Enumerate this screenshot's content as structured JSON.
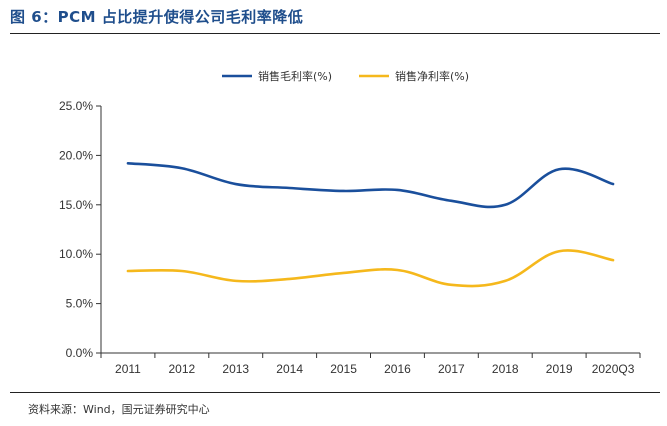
{
  "figure": {
    "title": "图 6：PCM 占比提升使得公司毛利率降低",
    "source": "资料来源：Wind，国元证券研究中心"
  },
  "chart_data": {
    "type": "line",
    "title": "",
    "xlabel": "",
    "ylabel": "",
    "categories": [
      "2011",
      "2012",
      "2013",
      "2014",
      "2015",
      "2016",
      "2017",
      "2018",
      "2019",
      "2020Q3"
    ],
    "ylim": [
      0,
      25
    ],
    "yticks": [
      0,
      5,
      10,
      15,
      20,
      25
    ],
    "ytick_labels": [
      "0.0%",
      "5.0%",
      "10.0%",
      "15.0%",
      "20.0%",
      "25.0%"
    ],
    "grid": false,
    "legend_position": "top",
    "series": [
      {
        "name": "销售毛利率(%)",
        "color": "#1a4f9c",
        "values": [
          19.2,
          18.7,
          17.1,
          16.7,
          16.4,
          16.5,
          15.4,
          15.0,
          18.6,
          17.1
        ]
      },
      {
        "name": "销售净利率(%)",
        "color": "#f5b81c",
        "values": [
          8.3,
          8.3,
          7.3,
          7.5,
          8.1,
          8.4,
          6.9,
          7.3,
          10.3,
          9.4
        ]
      }
    ]
  }
}
